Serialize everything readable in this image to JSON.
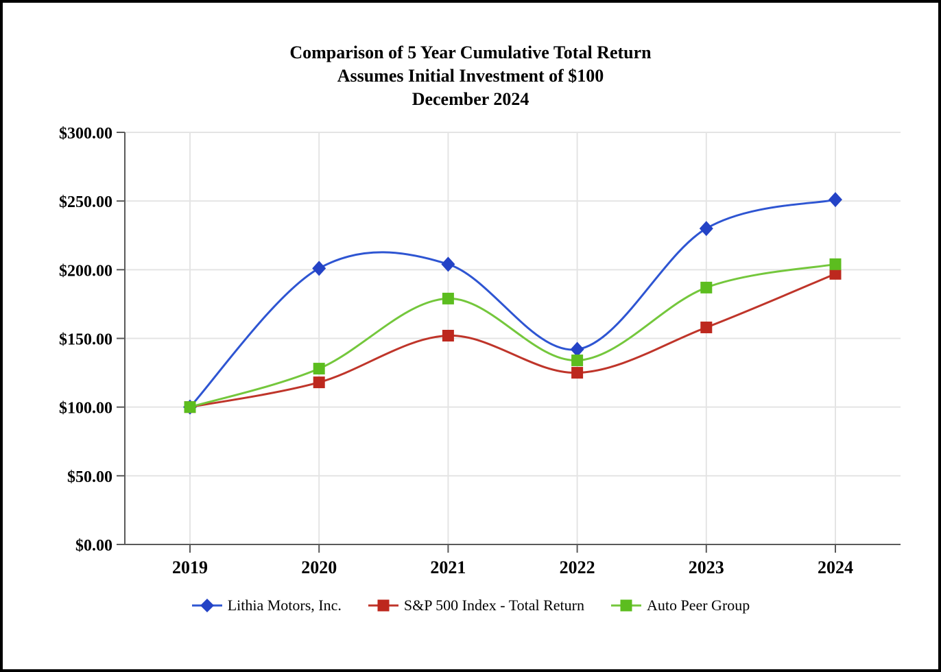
{
  "title": {
    "line1": "Comparison of 5 Year Cumulative Total Return",
    "line2": "Assumes Initial Investment of $100",
    "line3": "December 2024"
  },
  "chart_data": {
    "type": "line",
    "x": [
      "2019",
      "2020",
      "2021",
      "2022",
      "2023",
      "2024"
    ],
    "series": [
      {
        "name": "Lithia Motors, Inc.",
        "marker": "diamond",
        "marker_color": "#2443c6",
        "line_color": "#2e55d2",
        "values": [
          100,
          201,
          204,
          142,
          230,
          251
        ]
      },
      {
        "name": "S&P 500 Index - Total Return",
        "marker": "square",
        "marker_color": "#bd281e",
        "line_color": "#bf352a",
        "values": [
          100,
          118,
          152,
          125,
          158,
          197
        ]
      },
      {
        "name": "Auto Peer Group",
        "marker": "square",
        "marker_color": "#5cbd1f",
        "line_color": "#74c73c",
        "values": [
          100,
          128,
          179,
          134,
          187,
          204
        ]
      }
    ],
    "ylim": [
      0,
      300
    ],
    "ytick_step": 50,
    "ytick_labels": [
      "$0.00",
      "$50.00",
      "$100.00",
      "$150.00",
      "$200.00",
      "$250.00",
      "$300.00"
    ],
    "xlabel": "",
    "ylabel": "",
    "grid": true,
    "smooth": true,
    "legend_position": "bottom"
  },
  "colors": {
    "gridline": "#e4e4e4",
    "axis": "#595959",
    "text": "#000000",
    "background": "#ffffff",
    "border": "#000000"
  }
}
